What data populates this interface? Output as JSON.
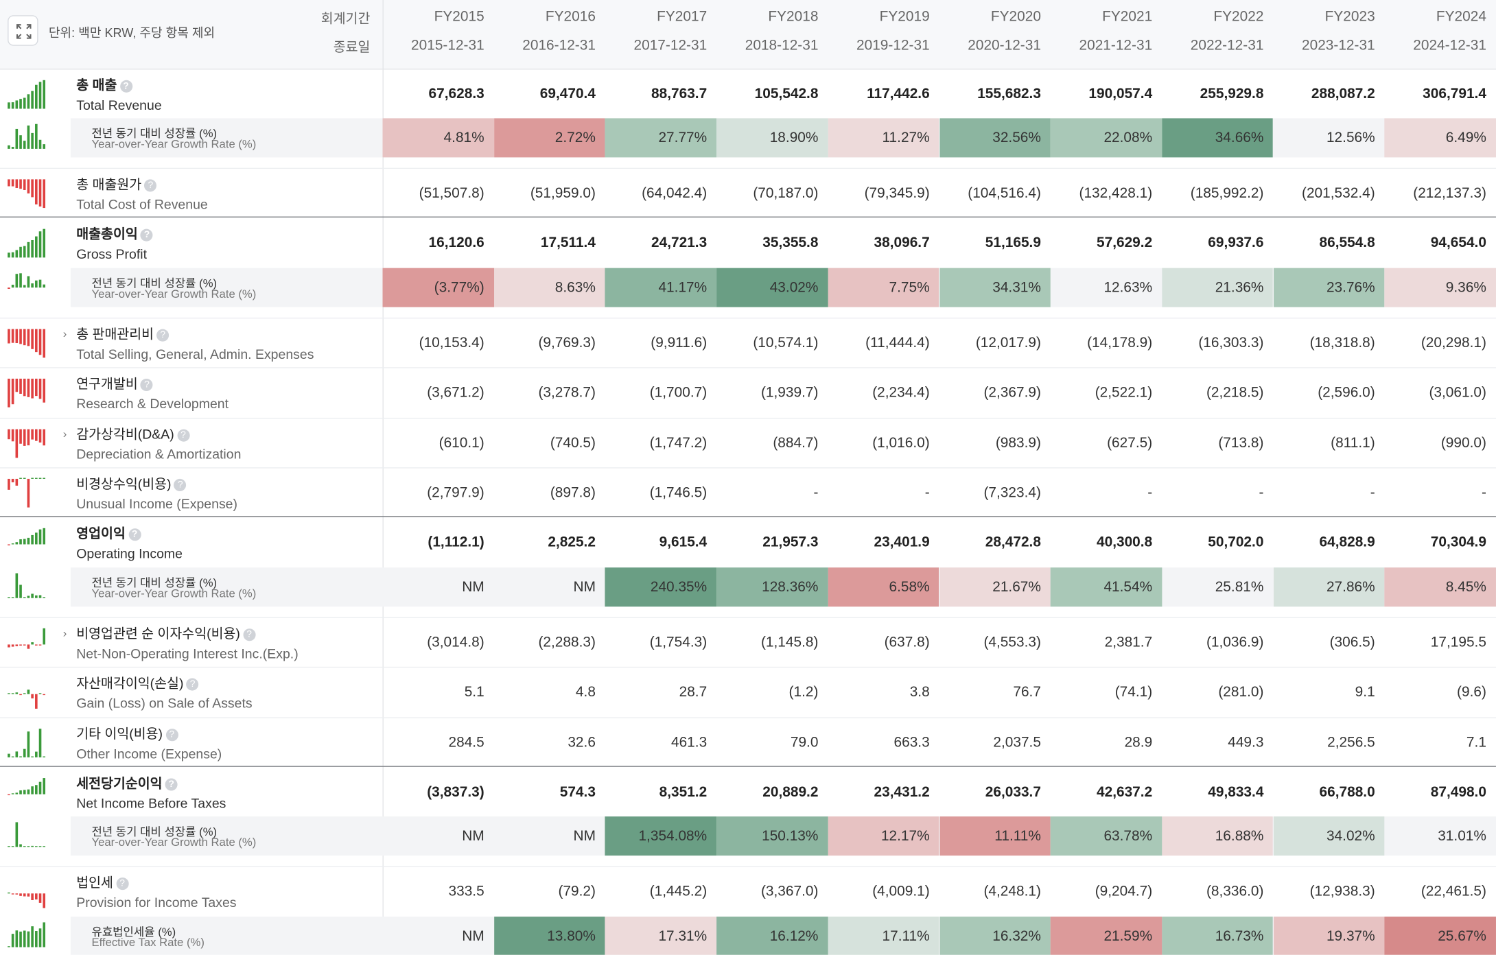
{
  "header": {
    "unit": "단위: 백만 KRW, 주당 항목 제외",
    "period_label": "회계기간",
    "end_label": "종료일",
    "columns": [
      {
        "fy": "FY2015",
        "date": "2015-12-31"
      },
      {
        "fy": "FY2016",
        "date": "2016-12-31"
      },
      {
        "fy": "FY2017",
        "date": "2017-12-31"
      },
      {
        "fy": "FY2018",
        "date": "2018-12-31"
      },
      {
        "fy": "FY2019",
        "date": "2019-12-31"
      },
      {
        "fy": "FY2020",
        "date": "2020-12-31"
      },
      {
        "fy": "FY2021",
        "date": "2021-12-31"
      },
      {
        "fy": "FY2022",
        "date": "2022-12-31"
      },
      {
        "fy": "FY2023",
        "date": "2023-12-31"
      },
      {
        "fy": "FY2024",
        "date": "2024-12-31"
      }
    ]
  },
  "colors": {
    "positive_bar": "#3a9a3a",
    "negative_bar": "#e04040",
    "green_strong": "#6a9e84",
    "red_strong": "#dc9494"
  },
  "rows": [
    {
      "kind": "line",
      "bold": true,
      "ko": "총 매출",
      "en": "Total Revenue",
      "values": [
        "67,628.3",
        "69,470.4",
        "88,763.7",
        "105,542.8",
        "117,442.6",
        "155,682.3",
        "190,057.4",
        "255,929.8",
        "288,087.2",
        "306,791.4"
      ]
    },
    {
      "kind": "growth",
      "ko": "전년 동기 대비 성장률 (%)",
      "en": "Year-over-Year Growth Rate (%)",
      "values": [
        "4.81%",
        "2.72%",
        "27.77%",
        "18.90%",
        "11.27%",
        "32.56%",
        "22.08%",
        "34.66%",
        "12.56%",
        "6.49%"
      ],
      "levels": [
        -2,
        -3,
        2,
        1,
        -1,
        3,
        2,
        4,
        0,
        -1
      ]
    },
    {
      "kind": "line",
      "bold": false,
      "ko": "총 매출원가",
      "en": "Total Cost of Revenue",
      "values": [
        "(51,507.8)",
        "(51,959.0)",
        "(64,042.4)",
        "(70,187.0)",
        "(79,345.9)",
        "(104,516.4)",
        "(132,428.1)",
        "(185,992.2)",
        "(201,532.4)",
        "(212,137.3)"
      ]
    },
    {
      "kind": "line",
      "bold": true,
      "ko": "매출총이익",
      "en": "Gross Profit",
      "values": [
        "16,120.6",
        "17,511.4",
        "24,721.3",
        "35,355.8",
        "38,096.7",
        "51,165.9",
        "57,629.2",
        "69,937.6",
        "86,554.8",
        "94,654.0"
      ]
    },
    {
      "kind": "growth",
      "ko": "전년 동기 대비 성장률 (%)",
      "en": "Year-over-Year Growth Rate (%)",
      "values": [
        "(3.77%)",
        "8.63%",
        "41.17%",
        "43.02%",
        "7.75%",
        "34.31%",
        "12.63%",
        "21.36%",
        "23.76%",
        "9.36%"
      ],
      "levels": [
        -3,
        -1,
        3,
        4,
        -2,
        2,
        0,
        1,
        2,
        -1
      ]
    },
    {
      "kind": "line",
      "bold": false,
      "expand": true,
      "ko": "총 판매관리비",
      "en": "Total Selling, General, Admin. Expenses",
      "values": [
        "(10,153.4)",
        "(9,769.3)",
        "(9,911.6)",
        "(10,574.1)",
        "(11,444.4)",
        "(12,017.9)",
        "(14,178.9)",
        "(16,303.3)",
        "(18,318.8)",
        "(20,298.1)"
      ]
    },
    {
      "kind": "line",
      "bold": false,
      "ko": "연구개발비",
      "en": "Research & Development",
      "values": [
        "(3,671.2)",
        "(3,278.7)",
        "(1,700.7)",
        "(1,939.7)",
        "(2,234.4)",
        "(2,367.9)",
        "(2,522.1)",
        "(2,218.5)",
        "(2,596.0)",
        "(3,061.0)"
      ]
    },
    {
      "kind": "line",
      "bold": false,
      "expand": true,
      "ko": "감가상각비(D&A)",
      "en": "Depreciation & Amortization",
      "values": [
        "(610.1)",
        "(740.5)",
        "(1,747.2)",
        "(884.7)",
        "(1,016.0)",
        "(983.9)",
        "(627.5)",
        "(713.8)",
        "(811.1)",
        "(990.0)"
      ]
    },
    {
      "kind": "line",
      "bold": false,
      "ko": "비경상수익(비용)",
      "en": "Unusual Income (Expense)",
      "values": [
        "(2,797.9)",
        "(897.8)",
        "(1,746.5)",
        "-",
        "-",
        "(7,323.4)",
        "-",
        "-",
        "-",
        "-"
      ]
    },
    {
      "kind": "line",
      "bold": true,
      "ko": "영업이익",
      "en": "Operating Income",
      "values": [
        "(1,112.1)",
        "2,825.2",
        "9,615.4",
        "21,957.3",
        "23,401.9",
        "28,472.8",
        "40,300.8",
        "50,702.0",
        "64,828.9",
        "70,304.9"
      ]
    },
    {
      "kind": "growth",
      "ko": "전년 동기 대비 성장률 (%)",
      "en": "Year-over-Year Growth Rate (%)",
      "values": [
        "NM",
        "NM",
        "240.35%",
        "128.36%",
        "6.58%",
        "21.67%",
        "41.54%",
        "25.81%",
        "27.86%",
        "8.45%"
      ],
      "levels": [
        0,
        0,
        4,
        3,
        -3,
        -1,
        2,
        0,
        1,
        -2
      ]
    },
    {
      "kind": "line",
      "bold": false,
      "expand": true,
      "ko": "비영업관련 순 이자수익(비용)",
      "en": "Net-Non-Operating Interest Inc.(Exp.)",
      "values": [
        "(3,014.8)",
        "(2,288.3)",
        "(1,754.3)",
        "(1,145.8)",
        "(637.8)",
        "(4,553.3)",
        "2,381.7",
        "(1,036.9)",
        "(306.5)",
        "17,195.5"
      ]
    },
    {
      "kind": "line",
      "bold": false,
      "ko": "자산매각이익(손실)",
      "en": "Gain (Loss) on Sale of Assets",
      "values": [
        "5.1",
        "4.8",
        "28.7",
        "(1.2)",
        "3.8",
        "76.7",
        "(74.1)",
        "(281.0)",
        "9.1",
        "(9.6)"
      ]
    },
    {
      "kind": "line",
      "bold": false,
      "ko": "기타 이익(비용)",
      "en": "Other Income (Expense)",
      "values": [
        "284.5",
        "32.6",
        "461.3",
        "79.0",
        "663.3",
        "2,037.5",
        "28.9",
        "449.3",
        "2,256.5",
        "7.1"
      ]
    },
    {
      "kind": "line",
      "bold": true,
      "ko": "세전당기순이익",
      "en": "Net Income Before Taxes",
      "values": [
        "(3,837.3)",
        "574.3",
        "8,351.2",
        "20,889.2",
        "23,431.2",
        "26,033.7",
        "42,637.2",
        "49,833.4",
        "66,788.0",
        "87,498.0"
      ]
    },
    {
      "kind": "growth",
      "ko": "전년 동기 대비 성장률 (%)",
      "en": "Year-over-Year Growth Rate (%)",
      "values": [
        "NM",
        "NM",
        "1,354.08%",
        "150.13%",
        "12.17%",
        "11.11%",
        "63.78%",
        "16.88%",
        "34.02%",
        "31.01%"
      ],
      "levels": [
        0,
        0,
        4,
        3,
        -2,
        -3,
        2,
        -1,
        1,
        0
      ]
    },
    {
      "kind": "line",
      "bold": false,
      "ko": "법인세",
      "en": "Provision for Income Taxes",
      "values": [
        "333.5",
        "(79.2)",
        "(1,445.2)",
        "(3,367.0)",
        "(4,009.1)",
        "(4,248.1)",
        "(9,204.7)",
        "(8,336.0)",
        "(12,938.3)",
        "(22,461.5)"
      ]
    },
    {
      "kind": "growth",
      "ko": "유효법인세율 (%)",
      "en": "Effective Tax Rate (%)",
      "values": [
        "NM",
        "13.80%",
        "17.31%",
        "16.12%",
        "17.11%",
        "16.32%",
        "21.59%",
        "16.73%",
        "19.37%",
        "25.67%"
      ],
      "levels": [
        0,
        4,
        -1,
        3,
        1,
        2,
        -3,
        2,
        -2,
        -4
      ]
    }
  ]
}
